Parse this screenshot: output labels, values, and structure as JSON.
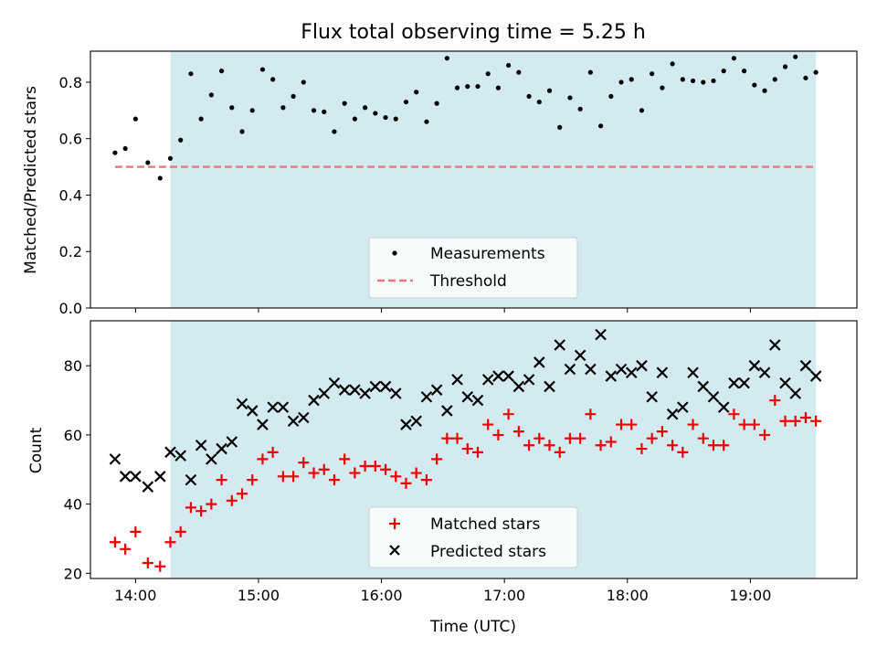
{
  "chart_data": [
    {
      "type": "scatter",
      "title": "Flux total observing time = 5.25 h",
      "xlabel": "",
      "ylabel": "Matched/Predicted stars",
      "xlim": [
        "13:38",
        "19:52"
      ],
      "ylim": [
        0,
        0.91
      ],
      "yticks": [
        "0.0",
        "0.2",
        "0.4",
        "0.6",
        "0.8"
      ],
      "shaded_region": {
        "start": "14:17",
        "end": "19:32",
        "color": "#d3eaf0"
      },
      "legend": {
        "placement": "bottom-center",
        "entries": [
          "Measurements",
          "Threshold"
        ]
      },
      "threshold": {
        "name": "Threshold",
        "value": 0.5,
        "start": "13:50",
        "end": "19:32",
        "color": "#f07575",
        "style": "dashed"
      },
      "series": [
        {
          "name": "Measurements",
          "marker": "dot",
          "color": "#000000",
          "x": [
            "13:50",
            "13:55",
            "14:00",
            "14:06",
            "14:12",
            "14:17",
            "14:22",
            "14:27",
            "14:32",
            "14:37",
            "14:42",
            "14:47",
            "14:52",
            "14:57",
            "15:02",
            "15:07",
            "15:12",
            "15:17",
            "15:22",
            "15:27",
            "15:32",
            "15:37",
            "15:42",
            "15:47",
            "15:52",
            "15:57",
            "16:02",
            "16:07",
            "16:12",
            "16:17",
            "16:22",
            "16:27",
            "16:32",
            "16:37",
            "16:42",
            "16:47",
            "16:52",
            "16:57",
            "17:02",
            "17:07",
            "17:12",
            "17:17",
            "17:22",
            "17:27",
            "17:32",
            "17:37",
            "17:42",
            "17:47",
            "17:52",
            "17:57",
            "18:02",
            "18:07",
            "18:12",
            "18:17",
            "18:22",
            "18:27",
            "18:32",
            "18:37",
            "18:42",
            "18:47",
            "18:52",
            "18:57",
            "19:02",
            "19:07",
            "19:12",
            "19:17",
            "19:22",
            "19:27",
            "19:32"
          ],
          "values": [
            0.55,
            0.565,
            0.67,
            0.515,
            0.46,
            0.53,
            0.595,
            0.83,
            0.67,
            0.755,
            0.84,
            0.71,
            0.625,
            0.7,
            0.845,
            0.81,
            0.71,
            0.75,
            0.8,
            0.7,
            0.695,
            0.625,
            0.725,
            0.67,
            0.71,
            0.69,
            0.675,
            0.67,
            0.73,
            0.765,
            0.66,
            0.725,
            0.885,
            0.78,
            0.785,
            0.785,
            0.83,
            0.78,
            0.86,
            0.835,
            0.75,
            0.73,
            0.77,
            0.64,
            0.745,
            0.705,
            0.835,
            0.645,
            0.75,
            0.8,
            0.81,
            0.7,
            0.83,
            0.78,
            0.865,
            0.81,
            0.805,
            0.8,
            0.805,
            0.84,
            0.885,
            0.84,
            0.79,
            0.77,
            0.81,
            0.855,
            0.89,
            0.815,
            0.835
          ]
        }
      ]
    },
    {
      "type": "scatter",
      "title": "",
      "xlabel": "Time (UTC)",
      "ylabel": "Count",
      "xlim": [
        "13:38",
        "19:52"
      ],
      "ylim": [
        18.5,
        93
      ],
      "yticks": [
        "20",
        "40",
        "60",
        "80"
      ],
      "xticks": [
        "14:00",
        "15:00",
        "16:00",
        "17:00",
        "18:00",
        "19:00"
      ],
      "shaded_region": {
        "start": "14:17",
        "end": "19:32",
        "color": "#d3eaf0"
      },
      "legend": {
        "placement": "bottom-center",
        "entries": [
          "Matched stars",
          "Predicted stars"
        ]
      },
      "series": [
        {
          "name": "Matched stars",
          "marker": "plus",
          "color": "#ee0000",
          "x": [
            "13:50",
            "13:55",
            "14:00",
            "14:06",
            "14:12",
            "14:17",
            "14:22",
            "14:27",
            "14:32",
            "14:37",
            "14:42",
            "14:47",
            "14:52",
            "14:57",
            "15:02",
            "15:07",
            "15:12",
            "15:17",
            "15:22",
            "15:27",
            "15:32",
            "15:37",
            "15:42",
            "15:47",
            "15:52",
            "15:57",
            "16:02",
            "16:07",
            "16:12",
            "16:17",
            "16:22",
            "16:27",
            "16:32",
            "16:37",
            "16:42",
            "16:47",
            "16:52",
            "16:57",
            "17:02",
            "17:07",
            "17:12",
            "17:17",
            "17:22",
            "17:27",
            "17:32",
            "17:37",
            "17:42",
            "17:47",
            "17:52",
            "17:57",
            "18:02",
            "18:07",
            "18:12",
            "18:17",
            "18:22",
            "18:27",
            "18:32",
            "18:37",
            "18:42",
            "18:47",
            "18:52",
            "18:57",
            "19:02",
            "19:07",
            "19:12",
            "19:17",
            "19:22",
            "19:27",
            "19:32"
          ],
          "values": [
            29,
            27,
            32,
            23,
            22,
            29,
            32,
            39,
            38,
            40,
            47,
            41,
            43,
            47,
            53,
            55,
            48,
            48,
            52,
            49,
            50,
            47,
            53,
            49,
            51,
            51,
            50,
            48,
            46,
            49,
            47,
            53,
            59,
            59,
            56,
            55,
            63,
            60,
            66,
            61,
            57,
            59,
            57,
            55,
            59,
            59,
            66,
            57,
            58,
            63,
            63,
            56,
            59,
            61,
            57,
            55,
            63,
            59,
            57,
            57,
            66,
            63,
            63,
            60,
            70,
            64,
            64,
            65,
            64
          ]
        },
        {
          "name": "Predicted stars",
          "marker": "x",
          "color": "#000000",
          "x": [
            "13:50",
            "13:55",
            "14:00",
            "14:06",
            "14:12",
            "14:17",
            "14:22",
            "14:27",
            "14:32",
            "14:37",
            "14:42",
            "14:47",
            "14:52",
            "14:57",
            "15:02",
            "15:07",
            "15:12",
            "15:17",
            "15:22",
            "15:27",
            "15:32",
            "15:37",
            "15:42",
            "15:47",
            "15:52",
            "15:57",
            "16:02",
            "16:07",
            "16:12",
            "16:17",
            "16:22",
            "16:27",
            "16:32",
            "16:37",
            "16:42",
            "16:47",
            "16:52",
            "16:57",
            "17:02",
            "17:07",
            "17:12",
            "17:17",
            "17:22",
            "17:27",
            "17:32",
            "17:37",
            "17:42",
            "17:47",
            "17:52",
            "17:57",
            "18:02",
            "18:07",
            "18:12",
            "18:17",
            "18:22",
            "18:27",
            "18:32",
            "18:37",
            "18:42",
            "18:47",
            "18:52",
            "18:57",
            "19:02",
            "19:07",
            "19:12",
            "19:17",
            "19:22",
            "19:27",
            "19:32"
          ],
          "values": [
            53,
            48,
            48,
            45,
            48,
            55,
            54,
            47,
            57,
            53,
            56,
            58,
            69,
            67,
            63,
            68,
            68,
            64,
            65,
            70,
            72,
            75,
            73,
            73,
            72,
            74,
            74,
            72,
            63,
            64,
            71,
            73,
            67,
            76,
            71,
            70,
            76,
            77,
            77,
            74,
            76,
            81,
            74,
            86,
            79,
            83,
            79,
            89,
            77,
            79,
            78,
            80,
            71,
            78,
            66,
            68,
            78,
            74,
            71,
            68,
            75,
            75,
            80,
            78,
            86,
            75,
            72,
            80,
            77
          ]
        }
      ]
    }
  ]
}
